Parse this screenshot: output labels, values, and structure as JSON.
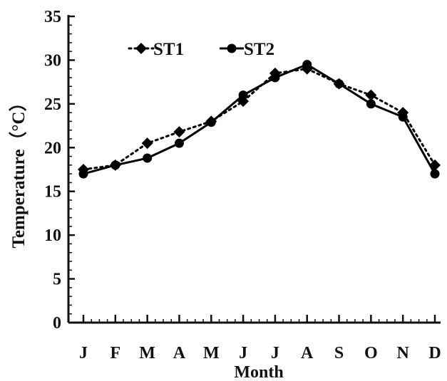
{
  "chart_data": {
    "type": "line",
    "title": "",
    "xlabel": "Month",
    "ylabel": "Temperature（°C）",
    "categories": [
      "J",
      "F",
      "M",
      "A",
      "M",
      "J",
      "J",
      "A",
      "S",
      "O",
      "N",
      "D"
    ],
    "ylim": [
      0,
      35
    ],
    "yticks": [
      "0",
      "5",
      "10",
      "15",
      "20",
      "25",
      "30",
      "35"
    ],
    "grid": false,
    "legend_position": "top-left",
    "series": [
      {
        "name": "ST1",
        "marker": "diamond",
        "line_style": "dotted",
        "color": "#000000",
        "values": [
          17.5,
          18.0,
          20.5,
          21.8,
          23.0,
          25.3,
          28.5,
          29.0,
          27.3,
          26.0,
          24.0,
          18.0
        ]
      },
      {
        "name": "ST2",
        "marker": "circle",
        "line_style": "solid",
        "color": "#000000",
        "values": [
          17.0,
          18.0,
          18.8,
          20.5,
          22.9,
          26.0,
          28.0,
          29.5,
          27.3,
          25.0,
          23.5,
          17.0
        ]
      }
    ]
  }
}
